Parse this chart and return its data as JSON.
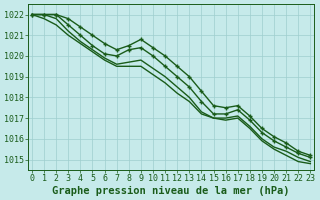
{
  "title": "Graphe pression niveau de la mer (hPa)",
  "background_color": "#c6eaea",
  "grid_color": "#9fcece",
  "line_color": "#1a5c1a",
  "x_min": -0.3,
  "x_max": 23.3,
  "y_min": 1014.5,
  "y_max": 1022.5,
  "y_ticks": [
    1015,
    1016,
    1017,
    1018,
    1019,
    1020,
    1021,
    1022
  ],
  "x_ticks": [
    0,
    1,
    2,
    3,
    4,
    5,
    6,
    7,
    8,
    9,
    10,
    11,
    12,
    13,
    14,
    15,
    16,
    17,
    18,
    19,
    20,
    21,
    22,
    23
  ],
  "series": [
    {
      "values": [
        1022.0,
        1022.0,
        1022.0,
        1021.5,
        1021.0,
        1020.5,
        1020.1,
        1020.0,
        1020.3,
        1020.4,
        1020.0,
        1019.5,
        1019.0,
        1018.5,
        1017.8,
        1017.2,
        1017.2,
        1017.4,
        1016.9,
        1016.3,
        1015.9,
        1015.6,
        1015.3,
        1015.1
      ],
      "marker": true,
      "lw": 1.0
    },
    {
      "values": [
        1022.0,
        1021.8,
        1021.5,
        1021.0,
        1020.6,
        1020.2,
        1019.8,
        1019.5,
        1019.5,
        1019.5,
        1019.1,
        1018.7,
        1018.2,
        1017.8,
        1017.2,
        1017.0,
        1017.0,
        1017.1,
        1016.6,
        1016.0,
        1015.6,
        1015.4,
        1015.1,
        1014.9
      ],
      "marker": false,
      "lw": 1.0
    },
    {
      "values": [
        1022.0,
        1022.0,
        1022.0,
        1021.8,
        1021.4,
        1021.0,
        1020.6,
        1020.3,
        1020.5,
        1020.8,
        1020.4,
        1020.0,
        1019.5,
        1019.0,
        1018.3,
        1017.6,
        1017.5,
        1017.6,
        1017.1,
        1016.5,
        1016.1,
        1015.8,
        1015.4,
        1015.2
      ],
      "marker": true,
      "lw": 1.0
    },
    {
      "values": [
        1022.0,
        1022.0,
        1021.8,
        1021.2,
        1020.7,
        1020.3,
        1019.9,
        1019.6,
        1019.7,
        1019.8,
        1019.4,
        1019.0,
        1018.5,
        1018.0,
        1017.3,
        1017.0,
        1016.9,
        1017.0,
        1016.5,
        1015.9,
        1015.5,
        1015.2,
        1014.9,
        1014.8
      ],
      "marker": false,
      "lw": 1.0
    }
  ],
  "marker_size": 3.5,
  "marker_style": "+",
  "title_fontsize": 7.5,
  "tick_fontsize": 6.0
}
